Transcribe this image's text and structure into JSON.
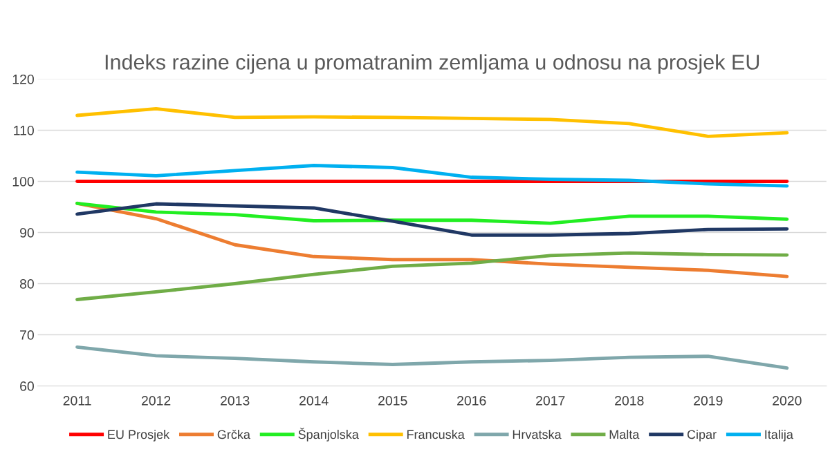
{
  "chart_data": {
    "type": "line",
    "title": "Indeks razine cijena u promatranim zemljama u odnosu na prosjek EU",
    "categories": [
      "2011",
      "2012",
      "2013",
      "2014",
      "2015",
      "2016",
      "2017",
      "2018",
      "2019",
      "2020"
    ],
    "ylim": [
      60,
      120
    ],
    "yticks": [
      60,
      70,
      80,
      90,
      100,
      110,
      120
    ],
    "grid": "y",
    "legend": "bottom",
    "marker": "none",
    "line_style": "solid",
    "series": [
      {
        "name": "EU Prosjek",
        "color": "#ff0000",
        "values": [
          100,
          100,
          100,
          100,
          100,
          100,
          100,
          100,
          100,
          100
        ]
      },
      {
        "name": "Grčka",
        "color": "#ed7d31",
        "values": [
          95.7,
          92.7,
          87.6,
          85.3,
          84.7,
          84.7,
          83.8,
          83.2,
          82.6,
          81.4
        ]
      },
      {
        "name": "Španjolska",
        "color": "#22ee22",
        "values": [
          95.7,
          94.0,
          93.5,
          92.3,
          92.4,
          92.4,
          91.8,
          93.2,
          93.2,
          92.6
        ]
      },
      {
        "name": "Francuska",
        "color": "#ffc000",
        "values": [
          112.9,
          114.2,
          112.5,
          112.6,
          112.5,
          112.3,
          112.1,
          111.3,
          108.8,
          109.5
        ]
      },
      {
        "name": "Hrvatska",
        "color": "#7fa7ab",
        "values": [
          67.6,
          65.9,
          65.4,
          64.7,
          64.2,
          64.7,
          65.0,
          65.6,
          65.8,
          63.5
        ]
      },
      {
        "name": "Malta",
        "color": "#70ad47",
        "values": [
          76.9,
          78.4,
          80.0,
          81.8,
          83.4,
          84.0,
          85.5,
          86.0,
          85.7,
          85.6
        ]
      },
      {
        "name": "Cipar",
        "color": "#203864",
        "values": [
          93.6,
          95.6,
          95.2,
          94.8,
          92.2,
          89.5,
          89.5,
          89.8,
          90.6,
          90.7
        ]
      },
      {
        "name": "Italija",
        "color": "#00b0f0",
        "values": [
          101.8,
          101.1,
          102.1,
          103.1,
          102.7,
          100.8,
          100.4,
          100.2,
          99.5,
          99.1
        ]
      }
    ]
  }
}
